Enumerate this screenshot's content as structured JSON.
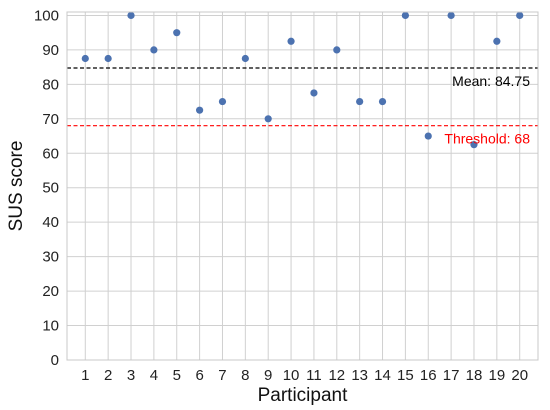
{
  "chart_data": {
    "type": "scatter",
    "title": "",
    "xlabel": "Participant",
    "ylabel": "SUS score",
    "x": [
      1,
      2,
      3,
      4,
      5,
      6,
      7,
      8,
      9,
      10,
      11,
      12,
      13,
      14,
      15,
      16,
      17,
      18,
      19,
      20
    ],
    "series": [
      {
        "values": [
          87.5,
          87.5,
          100,
          90,
          95,
          72.5,
          75,
          87.5,
          70,
          92.5,
          77.5,
          90,
          75,
          75,
          100,
          65,
          100,
          62.5,
          92.5,
          100
        ],
        "color": "#4c72b0"
      }
    ],
    "xlim": [
      0.2,
      20.8
    ],
    "ylim": [
      0,
      101
    ],
    "x_ticks": [
      1,
      2,
      3,
      4,
      5,
      6,
      7,
      8,
      9,
      10,
      11,
      12,
      13,
      14,
      15,
      16,
      17,
      18,
      19,
      20
    ],
    "y_ticks": [
      0,
      10,
      20,
      30,
      40,
      50,
      60,
      70,
      80,
      90,
      100
    ],
    "grid": true,
    "reference_lines": [
      {
        "value": 84.75,
        "label": "Mean: 84.75",
        "color": "#000000",
        "style": "dashed",
        "label_position": "top-right"
      },
      {
        "value": 68,
        "label": "Threshold: 68",
        "color": "#ff0000",
        "style": "dashed",
        "label_position": "top-right"
      }
    ]
  }
}
